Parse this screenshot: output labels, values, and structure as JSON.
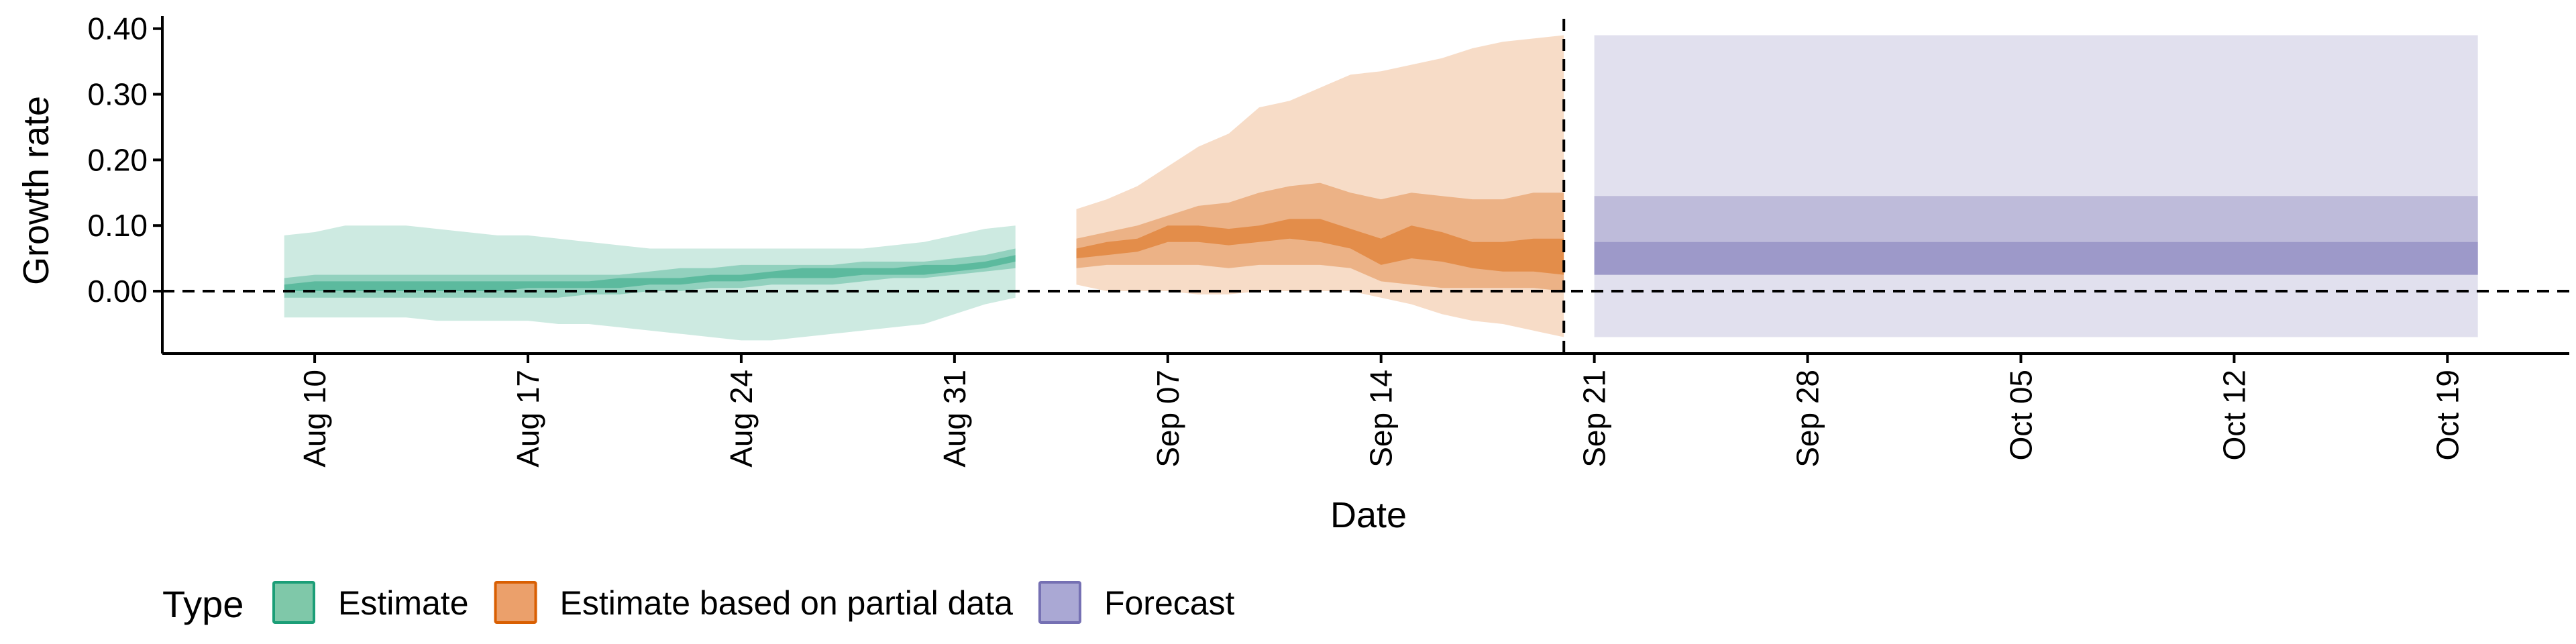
{
  "chart_data": {
    "type": "area",
    "xlabel": "Date",
    "ylabel": "Growth rate",
    "x_ticks": [
      "Aug 10",
      "Aug 17",
      "Aug 24",
      "Aug 31",
      "Sep 07",
      "Sep 14",
      "Sep 21",
      "Sep 28",
      "Oct 05",
      "Oct 12",
      "Oct 19"
    ],
    "y_ticks": [
      "0.00",
      "0.10",
      "0.20",
      "0.30",
      "0.40"
    ],
    "xlim": [
      "2020-08-05",
      "2020-10-23"
    ],
    "ylim": [
      -0.095,
      0.415
    ],
    "hline_y": 0.0,
    "vline_x": "2020-09-20",
    "grid": false,
    "legend": {
      "title": "Type",
      "position": "bottom-left",
      "entries": [
        {
          "label": "Estimate",
          "fill": "#7fc8a9",
          "stroke": "#1b9e77"
        },
        {
          "label": "Estimate based on partial data",
          "fill": "#eba06b",
          "stroke": "#d95f02"
        },
        {
          "label": "Forecast",
          "fill": "#aaa8d4",
          "stroke": "#7570b3"
        }
      ]
    },
    "series": [
      {
        "name": "Estimate",
        "color": "#1b9e77",
        "x": [
          "2020-08-09",
          "2020-08-10",
          "2020-08-11",
          "2020-08-12",
          "2020-08-13",
          "2020-08-14",
          "2020-08-15",
          "2020-08-16",
          "2020-08-17",
          "2020-08-18",
          "2020-08-19",
          "2020-08-20",
          "2020-08-21",
          "2020-08-22",
          "2020-08-23",
          "2020-08-24",
          "2020-08-25",
          "2020-08-26",
          "2020-08-27",
          "2020-08-28",
          "2020-08-29",
          "2020-08-30",
          "2020-08-31",
          "2020-09-01",
          "2020-09-02"
        ],
        "lower90": [
          -0.04,
          -0.04,
          -0.04,
          -0.04,
          -0.04,
          -0.045,
          -0.045,
          -0.045,
          -0.045,
          -0.05,
          -0.05,
          -0.055,
          -0.06,
          -0.065,
          -0.07,
          -0.075,
          -0.075,
          -0.07,
          -0.065,
          -0.06,
          -0.055,
          -0.05,
          -0.035,
          -0.02,
          -0.01
        ],
        "upper90": [
          0.085,
          0.09,
          0.1,
          0.1,
          0.1,
          0.095,
          0.09,
          0.085,
          0.085,
          0.08,
          0.075,
          0.07,
          0.065,
          0.065,
          0.065,
          0.065,
          0.065,
          0.065,
          0.065,
          0.065,
          0.07,
          0.075,
          0.085,
          0.095,
          0.1
        ],
        "lower50": [
          -0.01,
          -0.01,
          -0.01,
          -0.01,
          -0.01,
          -0.01,
          -0.01,
          -0.01,
          -0.01,
          -0.01,
          -0.005,
          -0.005,
          0.0,
          0.0,
          0.005,
          0.005,
          0.01,
          0.01,
          0.01,
          0.015,
          0.02,
          0.02,
          0.025,
          0.03,
          0.035
        ],
        "upper50": [
          0.02,
          0.025,
          0.025,
          0.025,
          0.025,
          0.025,
          0.025,
          0.025,
          0.025,
          0.025,
          0.025,
          0.025,
          0.03,
          0.035,
          0.035,
          0.04,
          0.04,
          0.04,
          0.04,
          0.045,
          0.045,
          0.045,
          0.05,
          0.055,
          0.065
        ],
        "lower20": [
          0.0,
          0.0,
          0.0,
          0.0,
          0.0,
          0.0,
          0.0,
          0.0,
          0.005,
          0.005,
          0.005,
          0.005,
          0.01,
          0.01,
          0.015,
          0.015,
          0.02,
          0.02,
          0.02,
          0.025,
          0.025,
          0.025,
          0.03,
          0.035,
          0.045
        ],
        "upper20": [
          0.01,
          0.015,
          0.015,
          0.015,
          0.015,
          0.015,
          0.015,
          0.015,
          0.015,
          0.015,
          0.015,
          0.02,
          0.02,
          0.02,
          0.025,
          0.025,
          0.03,
          0.035,
          0.035,
          0.035,
          0.035,
          0.04,
          0.04,
          0.045,
          0.055
        ]
      },
      {
        "name": "Estimate based on partial data",
        "color": "#d95f02",
        "x": [
          "2020-09-04",
          "2020-09-05",
          "2020-09-06",
          "2020-09-07",
          "2020-09-08",
          "2020-09-09",
          "2020-09-10",
          "2020-09-11",
          "2020-09-12",
          "2020-09-13",
          "2020-09-14",
          "2020-09-15",
          "2020-09-16",
          "2020-09-17",
          "2020-09-18",
          "2020-09-19",
          "2020-09-20"
        ],
        "lower90": [
          0.01,
          0.0,
          0.0,
          0.0,
          -0.005,
          -0.005,
          0.0,
          0.0,
          0.0,
          0.0,
          -0.01,
          -0.02,
          -0.035,
          -0.045,
          -0.05,
          -0.06,
          -0.07
        ],
        "upper90": [
          0.125,
          0.14,
          0.16,
          0.19,
          0.22,
          0.24,
          0.28,
          0.29,
          0.31,
          0.33,
          0.335,
          0.345,
          0.355,
          0.37,
          0.38,
          0.385,
          0.39
        ],
        "lower50": [
          0.035,
          0.04,
          0.04,
          0.04,
          0.04,
          0.035,
          0.04,
          0.04,
          0.04,
          0.035,
          0.015,
          0.01,
          0.005,
          0.005,
          0.005,
          0.005,
          0.0
        ],
        "upper50": [
          0.08,
          0.09,
          0.1,
          0.115,
          0.13,
          0.135,
          0.15,
          0.16,
          0.165,
          0.15,
          0.14,
          0.15,
          0.145,
          0.14,
          0.14,
          0.15,
          0.15
        ],
        "lower20": [
          0.05,
          0.055,
          0.06,
          0.075,
          0.075,
          0.07,
          0.075,
          0.08,
          0.075,
          0.065,
          0.04,
          0.05,
          0.045,
          0.035,
          0.03,
          0.03,
          0.025
        ],
        "upper20": [
          0.065,
          0.075,
          0.08,
          0.1,
          0.1,
          0.095,
          0.1,
          0.11,
          0.11,
          0.095,
          0.08,
          0.1,
          0.09,
          0.075,
          0.075,
          0.08,
          0.08
        ]
      },
      {
        "name": "Forecast",
        "color": "#7570b3",
        "x": [
          "2020-09-21",
          "2020-10-20"
        ],
        "lower90": [
          -0.07,
          -0.07
        ],
        "upper90": [
          0.39,
          0.39
        ],
        "lower50": [
          0.025,
          0.025
        ],
        "upper50": [
          0.145,
          0.145
        ],
        "lower20": [
          0.025,
          0.025
        ],
        "upper20": [
          0.075,
          0.075
        ]
      }
    ]
  }
}
